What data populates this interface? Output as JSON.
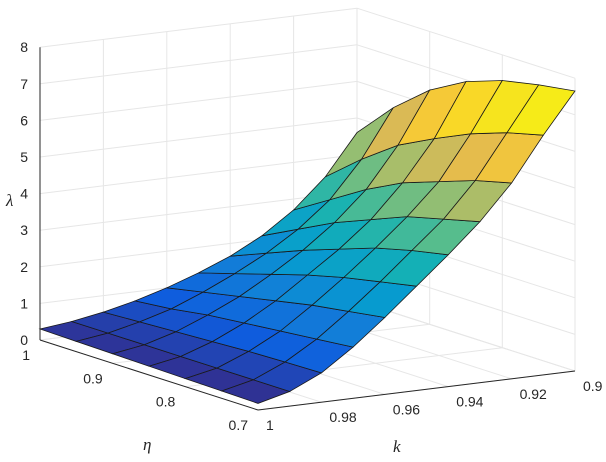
{
  "chart_data": {
    "type": "surface",
    "axes": {
      "k": {
        "label": "k",
        "ticks": [
          "1",
          "0.98",
          "0.96",
          "0.94",
          "0.92",
          "0.9"
        ],
        "range": [
          0.9,
          1.0
        ]
      },
      "eta": {
        "label": "η",
        "ticks": [
          "1",
          "0.9",
          "0.8",
          "0.7"
        ],
        "range": [
          0.7,
          1.0
        ]
      },
      "lambda": {
        "label": "λ",
        "ticks": [
          "0",
          "1",
          "2",
          "3",
          "4",
          "5",
          "6",
          "7",
          "8"
        ],
        "range": [
          0,
          8
        ]
      }
    },
    "grid": true,
    "colormap": "parula",
    "k_values": [
      1.0,
      0.99,
      0.98,
      0.97,
      0.96,
      0.95,
      0.94,
      0.93,
      0.92,
      0.91,
      0.9
    ],
    "eta_values": [
      1.0,
      0.95,
      0.9,
      0.85,
      0.8,
      0.75,
      0.7
    ],
    "lambda": [
      [
        0.3,
        0.4,
        0.55,
        0.75,
        1.0,
        1.3,
        1.65,
        2.1,
        2.7,
        3.5,
        4.6
      ],
      [
        0.28,
        0.4,
        0.6,
        0.85,
        1.2,
        1.6,
        2.05,
        2.6,
        3.3,
        4.3,
        5.6
      ],
      [
        0.26,
        0.4,
        0.65,
        1.0,
        1.4,
        1.9,
        2.45,
        3.1,
        3.9,
        5.0,
        6.4
      ],
      [
        0.24,
        0.4,
        0.7,
        1.1,
        1.6,
        2.2,
        2.8,
        3.5,
        4.4,
        5.5,
        6.95
      ],
      [
        0.22,
        0.4,
        0.75,
        1.2,
        1.8,
        2.45,
        3.15,
        3.9,
        4.75,
        5.95,
        7.3
      ],
      [
        0.2,
        0.4,
        0.78,
        1.3,
        1.95,
        2.65,
        3.4,
        4.15,
        5.1,
        6.3,
        7.5
      ],
      [
        0.18,
        0.4,
        0.8,
        1.4,
        2.1,
        2.85,
        3.6,
        4.4,
        5.35,
        6.55,
        7.65
      ]
    ]
  }
}
